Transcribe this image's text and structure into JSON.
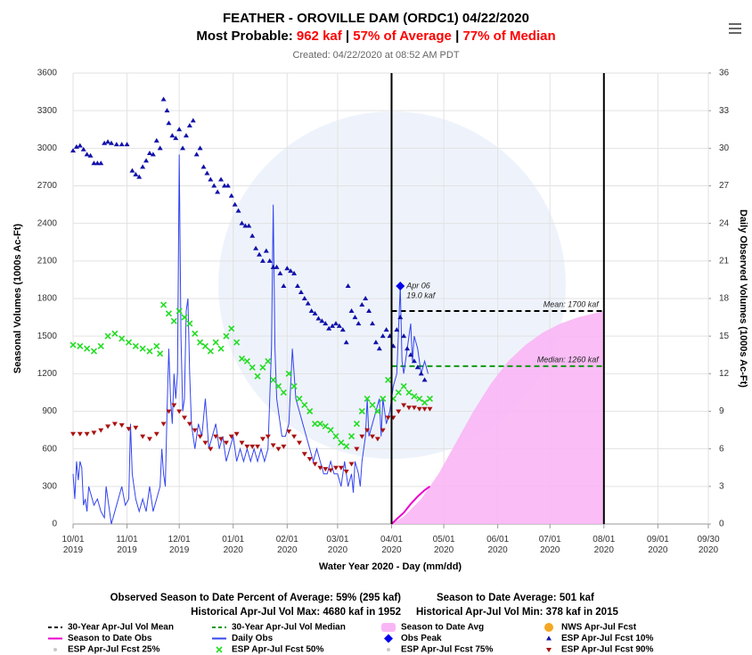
{
  "chart_data": {
    "type": "line",
    "title": "FEATHER - OROVILLE DAM (ORDC1)  04/22/2020",
    "subtitle": [
      {
        "text": "Most Probable: ",
        "color": "#000000"
      },
      {
        "text": "962 kaf",
        "color": "#ff0000"
      },
      {
        "text": " | ",
        "color": "#000000"
      },
      {
        "text": "57% of Average",
        "color": "#ff0000"
      },
      {
        "text": " | ",
        "color": "#000000"
      },
      {
        "text": "77% of Median",
        "color": "#ff0000"
      }
    ],
    "created": "Created: 04/22/2020 at 08:52 AM PDT",
    "x_label": "Water Year 2020 - Day (mm/dd)",
    "y_label": "Seasonal Volumes (1000s Ac-Ft)",
    "y2_label": "Daily Observed Volumes (1000s Ac-Ft)",
    "xlim": [
      0,
      365
    ],
    "xticks": [
      {
        "value": 0,
        "label": "10/01 2019"
      },
      {
        "value": 31,
        "label": "11/01 2019"
      },
      {
        "value": 61,
        "label": "12/01 2019"
      },
      {
        "value": 92,
        "label": "01/01 2020"
      },
      {
        "value": 123,
        "label": "02/01 2020"
      },
      {
        "value": 152,
        "label": "03/01 2020"
      },
      {
        "value": 183,
        "label": "04/01 2020"
      },
      {
        "value": 213,
        "label": "05/01 2020"
      },
      {
        "value": 244,
        "label": "06/01 2020"
      },
      {
        "value": 274,
        "label": "07/01 2020"
      },
      {
        "value": 305,
        "label": "08/01 2020"
      },
      {
        "value": 336,
        "label": "09/01 2020"
      },
      {
        "value": 365,
        "label": "09/30 2020"
      }
    ],
    "ylim": [
      0,
      3600
    ],
    "yticks": [
      0,
      300,
      600,
      900,
      1200,
      1500,
      1800,
      2100,
      2400,
      2700,
      3000,
      3300,
      3600
    ],
    "y2lim": [
      0,
      36
    ],
    "y2ticks": [
      0,
      3,
      6,
      9,
      12,
      15,
      18,
      21,
      24,
      27,
      30,
      33,
      36
    ],
    "grid": true,
    "vlines": [
      183,
      305
    ],
    "series": [
      {
        "name": "30-Year Apr-Jul Vol Mean",
        "color": "#000000",
        "mark": "dash",
        "x": [
          183,
          305
        ],
        "values": [
          1700,
          1700
        ],
        "annotation": "Mean: 1700 kaf"
      },
      {
        "name": "30-Year Apr-Jul Vol Median",
        "color": "#119911",
        "mark": "dash",
        "x": [
          183,
          305
        ],
        "values": [
          1260,
          1260
        ],
        "annotation": "Median: 1260 kaf"
      },
      {
        "name": "Season to Date Avg",
        "color": "#f9b6f5",
        "mark": "area",
        "x": [
          183,
          190,
          200,
          210,
          220,
          230,
          240,
          250,
          260,
          270,
          280,
          290,
          305
        ],
        "values": [
          0,
          60,
          200,
          400,
          650,
          900,
          1120,
          1300,
          1430,
          1530,
          1600,
          1650,
          1700
        ]
      },
      {
        "name": "NWS Apr-Jul Fcst",
        "color": "#f5a623",
        "mark": "circle"
      },
      {
        "name": "Season to Date Obs",
        "color": "#ee00cc",
        "mark": "line",
        "x": [
          183,
          186,
          190,
          194,
          198,
          202,
          205
        ],
        "values": [
          0,
          40,
          90,
          160,
          220,
          270,
          300
        ]
      },
      {
        "name": "Daily Obs",
        "color": "#3344ee",
        "mark": "line",
        "axis": "y2",
        "x": [
          0,
          1,
          2,
          3,
          4,
          5,
          6,
          7,
          8,
          9,
          10,
          12,
          14,
          16,
          18,
          19,
          20,
          22,
          24,
          26,
          28,
          30,
          32,
          33,
          34,
          36,
          38,
          40,
          42,
          44,
          46,
          48,
          50,
          51,
          52,
          53,
          54,
          55,
          56,
          57,
          58,
          59,
          60,
          61,
          62,
          63,
          64,
          65,
          66,
          67,
          68,
          69,
          70,
          72,
          74,
          76,
          78,
          80,
          82,
          84,
          86,
          88,
          90,
          92,
          94,
          96,
          98,
          100,
          102,
          104,
          106,
          108,
          110,
          112,
          114,
          115,
          116,
          117,
          118,
          119,
          120,
          122,
          124,
          126,
          127,
          128,
          130,
          132,
          134,
          136,
          138,
          140,
          142,
          144,
          146,
          148,
          150,
          152,
          154,
          156,
          158,
          160,
          161,
          162,
          164,
          165,
          166,
          168,
          169,
          170,
          172,
          174,
          176,
          177,
          178,
          180,
          182,
          184,
          186,
          188,
          189,
          190,
          192,
          194,
          195,
          196,
          198,
          200,
          202,
          204
        ],
        "values": [
          4,
          2,
          5,
          3.5,
          5,
          4.5,
          1.5,
          2,
          1,
          3,
          2.5,
          1.5,
          2,
          1,
          0.5,
          3,
          2,
          0,
          1,
          2,
          3,
          1.5,
          2,
          8,
          4,
          2,
          1,
          2,
          1,
          3,
          1,
          2,
          3,
          6,
          4,
          3,
          9,
          14,
          10,
          8,
          12,
          10,
          12,
          29.5,
          15,
          9,
          10,
          17,
          18,
          12,
          8,
          7,
          6,
          8,
          7,
          10,
          6,
          7,
          8,
          6,
          7,
          5,
          6,
          7,
          5,
          6,
          5,
          6,
          5,
          6,
          5,
          6,
          5,
          6,
          14,
          25.5,
          14,
          10,
          9,
          8,
          7,
          7,
          8,
          14,
          12,
          10,
          9,
          8,
          7,
          6,
          5,
          6,
          5,
          4,
          4,
          5,
          4,
          4,
          3,
          5,
          3,
          4,
          2.5,
          5,
          4,
          3,
          5,
          7,
          10,
          7,
          8,
          9,
          10,
          7,
          10,
          8,
          9,
          11,
          12,
          19,
          13,
          12,
          14,
          16,
          13,
          15,
          14,
          12,
          13,
          12
        ]
      },
      {
        "name": "Obs Peak",
        "color": "#0000ee",
        "mark": "diamond",
        "axis": "y2",
        "x": [
          188
        ],
        "values": [
          19.0
        ],
        "annotation": [
          "Apr 06",
          "19.0 kaf"
        ]
      },
      {
        "name": "ESP Apr-Jul Fcst 10%",
        "color": "#1111aa",
        "mark": "triangle-up",
        "x": [
          0,
          2,
          4,
          6,
          8,
          10,
          12,
          14,
          16,
          18,
          20,
          22,
          25,
          28,
          31,
          34,
          36,
          38,
          40,
          42,
          44,
          46,
          48,
          50,
          52,
          54,
          55,
          57,
          59,
          61,
          63,
          65,
          67,
          69,
          71,
          73,
          75,
          77,
          79,
          81,
          83,
          85,
          87,
          89,
          91,
          93,
          95,
          97,
          99,
          101,
          103,
          105,
          107,
          109,
          111,
          113,
          115,
          117,
          119,
          121,
          123,
          125,
          127,
          129,
          131,
          133,
          135,
          137,
          139,
          141,
          143,
          145,
          147,
          149,
          151,
          153,
          155,
          157,
          158,
          160,
          162,
          164,
          166,
          168,
          170,
          172,
          174,
          176,
          178,
          180,
          182,
          184,
          186,
          188,
          190,
          192,
          194,
          196,
          198,
          200,
          202
        ],
        "values": [
          2980,
          3010,
          3020,
          2990,
          2950,
          2940,
          2880,
          2880,
          2880,
          3040,
          3050,
          3040,
          3030,
          3030,
          3030,
          2820,
          2790,
          2770,
          2850,
          2900,
          2960,
          2950,
          3060,
          3000,
          3390,
          3300,
          3200,
          3100,
          3080,
          3150,
          3000,
          3100,
          3180,
          3220,
          2950,
          3000,
          2850,
          2800,
          2750,
          2700,
          2650,
          2750,
          2700,
          2700,
          2620,
          2550,
          2500,
          2400,
          2380,
          2380,
          2300,
          2200,
          2150,
          2100,
          2180,
          2100,
          2050,
          2050,
          2000,
          1900,
          2040,
          2020,
          2000,
          1900,
          1850,
          1800,
          1760,
          1700,
          1680,
          1640,
          1620,
          1600,
          1560,
          1580,
          1600,
          1580,
          1550,
          1450,
          1900,
          1700,
          1650,
          1600,
          1750,
          1800,
          1700,
          1600,
          1450,
          1400,
          1500,
          1550,
          1500,
          1420,
          1550,
          1650,
          1500,
          1400,
          1350,
          1300,
          1250,
          1200,
          1150
        ]
      },
      {
        "name": "ESP Apr-Jul Fcst 25%",
        "color": "#c8c8c8",
        "mark": "dot"
      },
      {
        "name": "ESP Apr-Jul Fcst 50%",
        "color": "#22dd22",
        "mark": "cross",
        "x": [
          0,
          4,
          8,
          12,
          16,
          20,
          24,
          28,
          32,
          36,
          40,
          44,
          48,
          50,
          52,
          55,
          58,
          61,
          64,
          67,
          70,
          73,
          76,
          79,
          82,
          85,
          88,
          91,
          94,
          97,
          100,
          103,
          106,
          109,
          112,
          115,
          118,
          121,
          124,
          127,
          130,
          133,
          136,
          139,
          142,
          145,
          148,
          151,
          154,
          157,
          160,
          163,
          166,
          169,
          172,
          175,
          178,
          181,
          184,
          187,
          190,
          193,
          196,
          199,
          202,
          205
        ],
        "values": [
          1430,
          1420,
          1400,
          1380,
          1420,
          1500,
          1520,
          1480,
          1450,
          1420,
          1400,
          1380,
          1420,
          1360,
          1750,
          1680,
          1620,
          1700,
          1650,
          1600,
          1520,
          1450,
          1420,
          1380,
          1450,
          1400,
          1500,
          1560,
          1450,
          1320,
          1300,
          1250,
          1180,
          1250,
          1300,
          1150,
          1100,
          1050,
          1200,
          1100,
          1000,
          950,
          900,
          800,
          800,
          780,
          750,
          700,
          650,
          620,
          700,
          800,
          900,
          1000,
          950,
          900,
          1000,
          1150,
          1000,
          1050,
          1100,
          1050,
          1020,
          1000,
          970,
          1000
        ]
      },
      {
        "name": "ESP Apr-Jul Fcst 75%",
        "color": "#c8c8c8",
        "mark": "dot"
      },
      {
        "name": "ESP Apr-Jul Fcst 90%",
        "color": "#aa1111",
        "mark": "triangle-down",
        "x": [
          0,
          4,
          8,
          12,
          16,
          20,
          24,
          28,
          32,
          36,
          40,
          44,
          48,
          52,
          55,
          58,
          61,
          64,
          67,
          70,
          73,
          76,
          79,
          82,
          85,
          88,
          91,
          94,
          97,
          100,
          103,
          106,
          109,
          112,
          115,
          118,
          121,
          124,
          127,
          130,
          133,
          136,
          139,
          142,
          145,
          148,
          151,
          154,
          157,
          160,
          163,
          166,
          169,
          172,
          175,
          178,
          181,
          184,
          187,
          190,
          193,
          196,
          199,
          202,
          205
        ],
        "values": [
          720,
          720,
          720,
          730,
          750,
          780,
          800,
          790,
          760,
          770,
          700,
          680,
          720,
          800,
          900,
          950,
          900,
          850,
          800,
          750,
          700,
          650,
          600,
          700,
          680,
          650,
          700,
          720,
          650,
          620,
          620,
          620,
          680,
          700,
          630,
          600,
          620,
          740,
          700,
          650,
          560,
          520,
          480,
          450,
          440,
          430,
          450,
          450,
          420,
          480,
          600,
          700,
          750,
          700,
          680,
          750,
          850,
          850,
          900,
          950,
          930,
          930,
          920,
          920,
          920
        ]
      }
    ],
    "footer": [
      [
        "Observed Season to Date Percent of Average: 59% (295 kaf)",
        "Season to Date Average: 501 kaf"
      ],
      [
        "Historical Apr-Jul Vol Max: 4680 kaf in 1952",
        "Historical Apr-Jul Vol Min: 378 kaf in 2015"
      ]
    ]
  }
}
